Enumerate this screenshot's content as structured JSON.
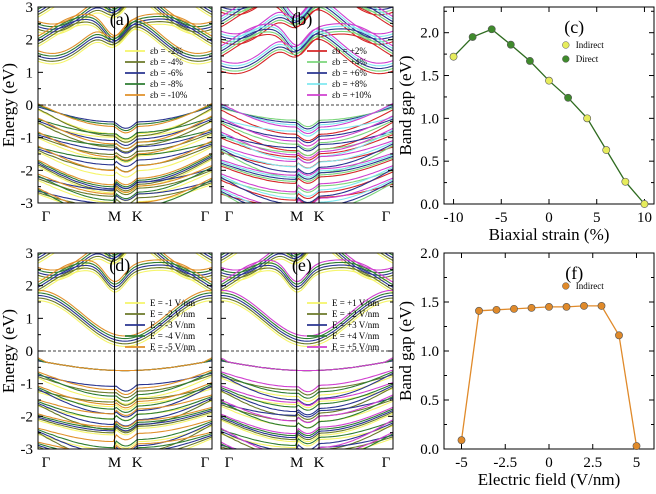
{
  "figure": {
    "band_ylabel": "Energy (eV)",
    "band_yticks": [
      "3",
      "2",
      "1",
      "0",
      "-1",
      "-2",
      "-3"
    ],
    "kpath": [
      "Γ",
      "M",
      "K",
      "Γ"
    ]
  },
  "chart_data": [
    {
      "id": "a",
      "type": "line",
      "panel_label": "(a)",
      "ylabel": "Energy (eV)",
      "ylim": [
        -3,
        3
      ],
      "x_ticks": [
        "Γ",
        "M",
        "K",
        "Γ"
      ],
      "legend": [
        {
          "label": "εb = -2%",
          "color": "#f5f56a"
        },
        {
          "label": "εb = -4%",
          "color": "#6b7a2a"
        },
        {
          "label": "εb = -6%",
          "color": "#2a3590"
        },
        {
          "label": "εb = -8%",
          "color": "#2e7d32"
        },
        {
          "label": "εb = -10%",
          "color": "#e0902a"
        }
      ]
    },
    {
      "id": "b",
      "type": "line",
      "panel_label": "(b)",
      "ylim": [
        -3,
        3
      ],
      "x_ticks": [
        "Γ",
        "M",
        "K",
        "Γ"
      ],
      "legend": [
        {
          "label": "εb = +2%",
          "color": "#d62728"
        },
        {
          "label": "εb = +4%",
          "color": "#7cd67c"
        },
        {
          "label": "εb = +6%",
          "color": "#2a3590"
        },
        {
          "label": "εb = +8%",
          "color": "#7fe8f0"
        },
        {
          "label": "εb = +10%",
          "color": "#d040d0"
        }
      ]
    },
    {
      "id": "c",
      "type": "scatter",
      "panel_label": "(c)",
      "xlabel": "Biaxial strain (%)",
      "ylabel": "Band gap (eV)",
      "xlim": [
        -11,
        11
      ],
      "ylim": [
        0,
        2.3
      ],
      "x_ticks": [
        -10,
        -5,
        0,
        5,
        10
      ],
      "y_ticks": [
        0.0,
        0.5,
        1.0,
        1.5,
        2.0
      ],
      "line_color": "#2e6b1f",
      "x": [
        -10,
        -8,
        -6,
        -4,
        -2,
        0,
        2,
        4,
        6,
        8,
        10
      ],
      "y": [
        1.72,
        1.95,
        2.04,
        1.86,
        1.67,
        1.44,
        1.24,
        1.0,
        0.63,
        0.26,
        0.0
      ],
      "kind": [
        "Indirect",
        "Direct",
        "Direct",
        "Direct",
        "Direct",
        "Indirect",
        "Direct",
        "Indirect",
        "Indirect",
        "Indirect",
        "Indirect"
      ],
      "legend": [
        {
          "label": "Indirect",
          "color": "#e6ec5c"
        },
        {
          "label": "Direct",
          "color": "#3f8a2c"
        }
      ]
    },
    {
      "id": "d",
      "type": "line",
      "panel_label": "(d)",
      "ylabel": "Energy (eV)",
      "ylim": [
        -3,
        3
      ],
      "x_ticks": [
        "Γ",
        "M",
        "K",
        "Γ"
      ],
      "legend": [
        {
          "label": "E = -1 V/nm",
          "color": "#f5f56a"
        },
        {
          "label": "E = -2 V/nm",
          "color": "#6b7a2a"
        },
        {
          "label": "E = -3 V/nm",
          "color": "#2a3590"
        },
        {
          "label": "E = -4 V/nm",
          "color": "#2e7d32"
        },
        {
          "label": "E = -5 V/nm",
          "color": "#e0902a"
        }
      ]
    },
    {
      "id": "e",
      "type": "line",
      "panel_label": "(e)",
      "ylim": [
        -3,
        3
      ],
      "x_ticks": [
        "Γ",
        "M",
        "K",
        "Γ"
      ],
      "legend": [
        {
          "label": "E = +1 V/nm",
          "color": "#f5f56a"
        },
        {
          "label": "E = +2 V/nm",
          "color": "#6b7a2a"
        },
        {
          "label": "E = +3 V/nm",
          "color": "#2a3590"
        },
        {
          "label": "E = +4 V/nm",
          "color": "#2e7d32"
        },
        {
          "label": "E = +5 V/nm",
          "color": "#d040d0"
        }
      ]
    },
    {
      "id": "f",
      "type": "scatter",
      "panel_label": "(f)",
      "xlabel": "Electric field (V/nm)",
      "ylabel": "Band gap (eV)",
      "xlim": [
        -6,
        6
      ],
      "ylim": [
        0,
        2.0
      ],
      "x_ticks": [
        -5,
        -2.5,
        0,
        2.5,
        5
      ],
      "y_ticks": [
        0.0,
        0.5,
        1.0,
        1.5,
        2.0
      ],
      "line_color": "#e08a2a",
      "x": [
        -5,
        -4,
        -3,
        -2,
        -1,
        0,
        1,
        2,
        3,
        4,
        5
      ],
      "y": [
        0.09,
        1.41,
        1.42,
        1.43,
        1.44,
        1.45,
        1.45,
        1.46,
        1.46,
        1.16,
        0.03
      ],
      "legend": [
        {
          "label": "Indirect",
          "color": "#e08a2a"
        }
      ]
    }
  ]
}
